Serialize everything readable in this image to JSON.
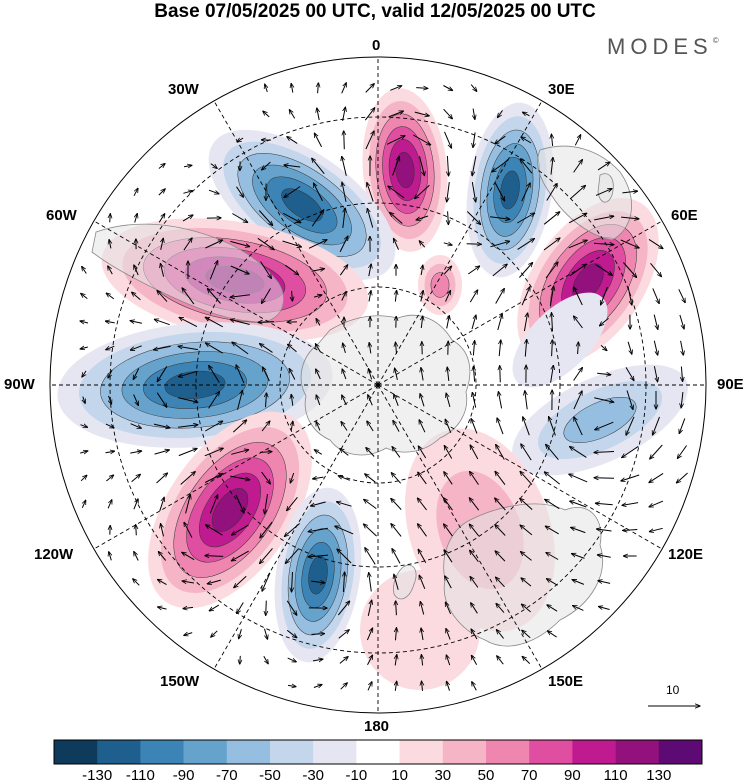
{
  "header": {
    "title": "Base 07/05/2025 00 UTC, valid 12/05/2025 00 UTC",
    "brand": "MODES",
    "brand_mark": "©"
  },
  "map": {
    "projection": "south polar stereographic",
    "longitude_labels": {
      "lon_0": "0",
      "lon_30e": "30E",
      "lon_60e": "60E",
      "lon_90e": "90E",
      "lon_120e": "120E",
      "lon_150e": "150E",
      "lon_180": "180",
      "lon_150w": "150W",
      "lon_120w": "120W",
      "lon_90w": "90W",
      "lon_60w": "60W",
      "lon_30w": "30W"
    },
    "reference_vector_label": "10",
    "land_color": "#e4e4e4",
    "ocean_color": "#ffffff"
  },
  "colorbar": {
    "colors": [
      "#0e3a5c",
      "#1f5f8d",
      "#3c84b5",
      "#66a3cc",
      "#95bee0",
      "#c4d6ec",
      "#e6e6f2",
      "#ffffff",
      "#fbdbe0",
      "#f6b4c7",
      "#ee86b0",
      "#df4ea0",
      "#bf1a8f",
      "#92117d",
      "#5e0a74"
    ],
    "tick_labels": [
      "-130",
      "-110",
      "-90",
      "-70",
      "-50",
      "-30",
      "-10",
      "10",
      "30",
      "50",
      "70",
      "90",
      "110",
      "130"
    ]
  }
}
